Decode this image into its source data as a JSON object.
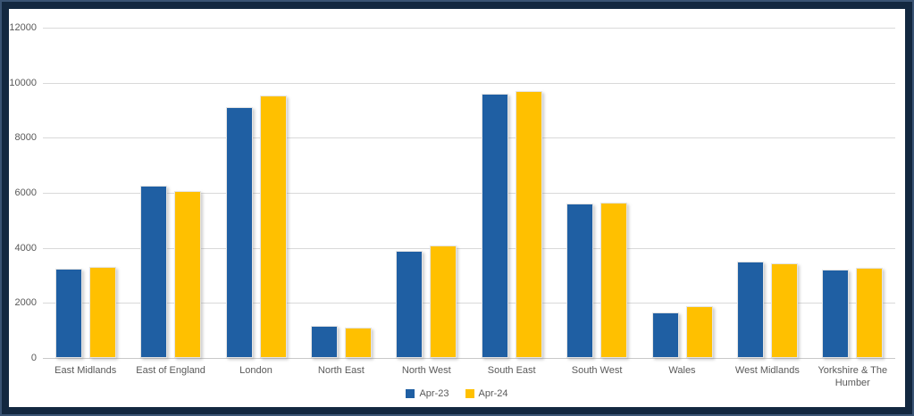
{
  "frame": {
    "border_color": "#132840",
    "border_highlight_color": "#3A5474",
    "background_color": "#FFFFFF",
    "gridline_color": "#D9D9D9",
    "axis_text_color": "#595959"
  },
  "chart_data": {
    "type": "bar",
    "title": "",
    "xlabel": "",
    "ylabel": "",
    "categories": [
      "East Midlands",
      "East of England",
      "London",
      "North East",
      "North West",
      "South East",
      "South West",
      "Wales",
      "West Midlands",
      "Yorkshire & The Humber"
    ],
    "series": [
      {
        "name": "Apr-23",
        "color": "#1F5FA3",
        "values": [
          3250,
          6250,
          9100,
          1175,
          3900,
          9600,
          5600,
          1650,
          3500,
          3200
        ]
      },
      {
        "name": "Apr-24",
        "color": "#FFC000",
        "values": [
          3300,
          6060,
          9550,
          1100,
          4075,
          9700,
          5650,
          1875,
          3450,
          3275
        ]
      }
    ],
    "ylim": [
      0,
      12000
    ],
    "ytick_step": 2000,
    "ytick_labels": [
      "0",
      "2000",
      "4000",
      "6000",
      "8000",
      "10000",
      "12000"
    ],
    "grid": true,
    "legend_position": "bottom-center"
  }
}
